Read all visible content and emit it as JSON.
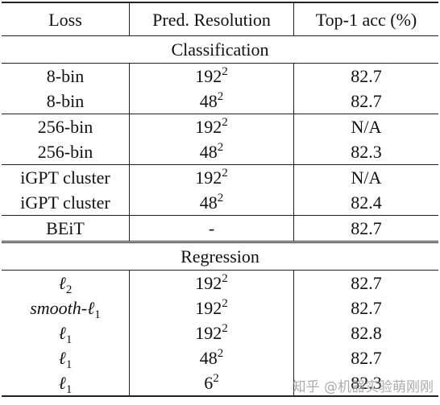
{
  "header": [
    "Loss",
    "Pred. Resolution",
    "Top-1 acc (%)"
  ],
  "sections": [
    {
      "title": "Classification",
      "groups": [
        [
          [
            "8-bin",
            {
              "base": "192",
              "sup": "2"
            },
            "82.7"
          ],
          [
            "8-bin",
            {
              "base": "48",
              "sup": "2"
            },
            "82.7"
          ]
        ],
        [
          [
            "256-bin",
            {
              "base": "192",
              "sup": "2"
            },
            "N/A"
          ],
          [
            "256-bin",
            {
              "base": "48",
              "sup": "2"
            },
            "82.3"
          ]
        ],
        [
          [
            "iGPT cluster",
            {
              "base": "192",
              "sup": "2"
            },
            "N/A"
          ],
          [
            "iGPT cluster",
            {
              "base": "48",
              "sup": "2"
            },
            "82.4"
          ]
        ],
        [
          [
            "BEiT",
            "-",
            "82.7"
          ]
        ]
      ]
    },
    {
      "title": "Regression",
      "groups": [
        [
          [
            {
              "base": "ℓ",
              "sub": "2"
            },
            {
              "base": "192",
              "sup": "2"
            },
            "82.7"
          ],
          [
            {
              "base": "smooth-ℓ",
              "sub": "1"
            },
            {
              "base": "192",
              "sup": "2"
            },
            "82.7"
          ],
          [
            {
              "base": "ℓ",
              "sub": "1"
            },
            {
              "base": "192",
              "sup": "2"
            },
            "82.8"
          ],
          [
            {
              "base": "ℓ",
              "sub": "1"
            },
            {
              "base": "48",
              "sup": "2"
            },
            "82.7"
          ],
          [
            {
              "base": "ℓ",
              "sub": "1"
            },
            {
              "base": "6",
              "sup": "2"
            },
            "82.3"
          ]
        ]
      ]
    }
  ],
  "watermark": "知乎 @机器实验萌刚刚"
}
